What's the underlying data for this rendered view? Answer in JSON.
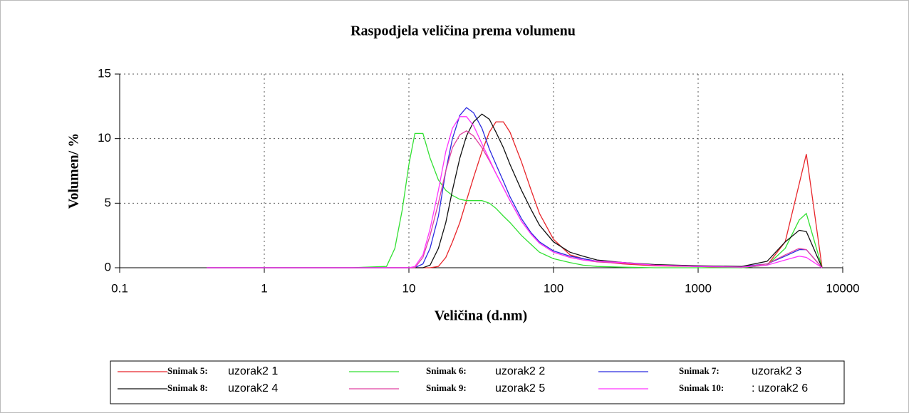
{
  "chart_data": {
    "type": "line",
    "title": "Raspodjela veličina prema volumenu",
    "x_label": "Veličina (d.nm)",
    "y_label": "Volumen/ %",
    "x": [
      0.4,
      1,
      4,
      7,
      8,
      9,
      10,
      11,
      12.5,
      14,
      16,
      18,
      20,
      22.5,
      25,
      28,
      32,
      36,
      40,
      45,
      50,
      60,
      70,
      80,
      100,
      130,
      160,
      200,
      300,
      500,
      1000,
      2000,
      3000,
      4000,
      5000,
      5600,
      7200
    ],
    "series": [
      {
        "label": "Snimak 5:",
        "name": "uzorak2 1",
        "color": "#e8262b",
        "values": [
          0,
          0,
          0,
          0,
          0,
          0,
          0,
          0,
          0,
          0,
          0.1,
          0.8,
          2,
          3.5,
          5.2,
          7,
          9,
          10.5,
          11.3,
          11.3,
          10.5,
          8.2,
          6,
          4.2,
          2.2,
          1,
          0.7,
          0.5,
          0.3,
          0.15,
          0.1,
          0,
          0.2,
          2,
          6.5,
          8.8,
          0
        ]
      },
      {
        "label": "Snimak 6:",
        "name": "uzorak2 2",
        "color": "#33e033",
        "values": [
          0,
          0,
          0,
          0.1,
          1.5,
          4.5,
          8,
          10.4,
          10.4,
          8.5,
          6.8,
          6,
          5.6,
          5.3,
          5.2,
          5.2,
          5.2,
          5,
          4.6,
          4,
          3.5,
          2.5,
          1.8,
          1.2,
          0.7,
          0.4,
          0.2,
          0.1,
          0.05,
          0,
          0,
          0,
          0.2,
          1.5,
          3.7,
          4.2,
          0
        ]
      },
      {
        "label": "Snimak 7:",
        "name": "uzorak2 3",
        "color": "#2a2ae0",
        "values": [
          0,
          0,
          0,
          0,
          0,
          0,
          0,
          0,
          0.3,
          1.5,
          4,
          7.5,
          10,
          11.8,
          12.4,
          12,
          10.8,
          9.2,
          8,
          6.7,
          5.5,
          3.8,
          2.7,
          2,
          1.3,
          0.9,
          0.7,
          0.5,
          0.4,
          0.2,
          0.1,
          0.1,
          0.3,
          0.9,
          1.4,
          1.4,
          0
        ]
      },
      {
        "label": "Snimak 8:",
        "name": "uzorak2 4",
        "color": "#111111",
        "values": [
          0,
          0,
          0,
          0,
          0,
          0,
          0,
          0,
          0,
          0.2,
          1.5,
          3.5,
          6,
          8.5,
          10.2,
          11.3,
          11.9,
          11.5,
          10.5,
          9.3,
          8,
          6,
          4.5,
          3.3,
          2,
          1.2,
          0.9,
          0.6,
          0.4,
          0.25,
          0.15,
          0.1,
          0.5,
          2,
          2.9,
          2.8,
          0
        ]
      },
      {
        "label": "Snimak 9:",
        "name": "uzorak2 5",
        "color": "#e040a0",
        "values": [
          0,
          0,
          0,
          0,
          0,
          0,
          0,
          0,
          0.8,
          2.5,
          5,
          7.5,
          9.3,
          10.3,
          10.6,
          10.2,
          9.3,
          8.3,
          7.3,
          6.2,
          5.2,
          3.6,
          2.6,
          1.9,
          1.2,
          0.8,
          0.6,
          0.45,
          0.35,
          0.2,
          0.1,
          0.05,
          0.3,
          1,
          1.5,
          1.4,
          0
        ]
      },
      {
        "label": "Snimak 10:",
        "name": ": uzorak2 6",
        "color": "#ff33ff",
        "values": [
          0,
          0,
          0,
          0,
          0,
          0,
          0,
          0.1,
          1,
          3,
          6,
          9,
          10.8,
          11.7,
          11.7,
          11,
          9.6,
          8.4,
          7.3,
          6.2,
          5.2,
          3.6,
          2.6,
          1.9,
          1.2,
          0.8,
          0.6,
          0.5,
          0.4,
          0.2,
          0.1,
          0.05,
          0.2,
          0.6,
          0.9,
          0.8,
          0
        ]
      }
    ],
    "xscale": "log",
    "xlim": [
      0.1,
      10000
    ],
    "xticks": [
      0.1,
      1,
      10,
      100,
      1000,
      10000
    ],
    "ylim": [
      0,
      15
    ],
    "yticks": [
      0,
      5,
      10,
      15
    ],
    "grid": true,
    "legend": "bottom"
  }
}
